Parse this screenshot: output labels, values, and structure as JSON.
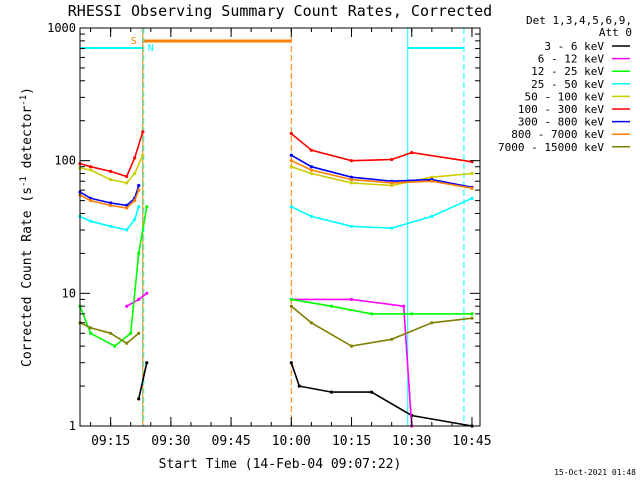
{
  "chart_data": {
    "type": "line",
    "title": "RHESSI Observing Summary Count Rates, Corrected",
    "xlabel": "Start Time (14-Feb-04 09:07:22)",
    "ylabel": "Corrected Count Rate (s",
    "ylabel_sup1": "-1",
    "ylabel_mid": " detector",
    "ylabel_sup2": "-1",
    "ylabel_end": ")",
    "y_scale": "log",
    "ylim": [
      1,
      1000
    ],
    "xlim": [
      "09:07:22",
      "10:47:00"
    ],
    "x_ticks": [
      "09:15",
      "09:30",
      "09:45",
      "10:00",
      "10:15",
      "10:30",
      "10:45"
    ],
    "y_ticks": [
      "1",
      "10",
      "100",
      "1000"
    ],
    "legend_title": [
      "Det 1,3,4,5,6,9,",
      "Att 0"
    ],
    "legend_position": "right",
    "timestamp": "15-Oct-2021 01:48",
    "flags": [
      {
        "label": "S",
        "color": "#ff7f00"
      },
      {
        "label": "N",
        "color": "#00ffff"
      }
    ],
    "series": [
      {
        "name": "3 - 6 keV",
        "color": "#000000",
        "x": [
          "09:07:22",
          "09:17",
          "09:22",
          "09:24",
          "10:00",
          "10:02",
          "10:10",
          "10:20",
          "10:30",
          "10:45"
        ],
        "values": [
          null,
          null,
          1.6,
          3.0,
          3.0,
          2.0,
          1.8,
          1.8,
          1.2,
          1.0
        ]
      },
      {
        "name": "6 - 12 keV",
        "color": "#ff00ff",
        "x": [
          "09:19",
          "09:22",
          "09:24",
          "10:00",
          "10:15",
          "10:28",
          "10:30"
        ],
        "values": [
          8,
          9,
          10,
          9,
          9,
          8,
          1.0
        ]
      },
      {
        "name": "12 - 25 keV",
        "color": "#00ff00",
        "x": [
          "09:07:22",
          "09:10",
          "09:16",
          "09:20",
          "09:22",
          "09:24",
          "10:00",
          "10:10",
          "10:20",
          "10:30",
          "10:45"
        ],
        "values": [
          8,
          5,
          4,
          5,
          20,
          45,
          9,
          8,
          7,
          7,
          7
        ]
      },
      {
        "name": "25 - 50 keV",
        "color": "#00ffff",
        "x": [
          "09:07:22",
          "09:10",
          "09:15",
          "09:19",
          "09:21",
          "09:22",
          "10:00",
          "10:05",
          "10:15",
          "10:25",
          "10:35",
          "10:45"
        ],
        "values": [
          38,
          35,
          32,
          30,
          36,
          45,
          45,
          38,
          32,
          31,
          38,
          52
        ]
      },
      {
        "name": "50 - 100 keV",
        "color": "#cccc00",
        "x": [
          "09:07:22",
          "09:10",
          "09:15",
          "09:19",
          "09:21",
          "09:23",
          "10:00",
          "10:05",
          "10:15",
          "10:25",
          "10:35",
          "10:45"
        ],
        "values": [
          88,
          85,
          72,
          68,
          80,
          110,
          90,
          80,
          68,
          65,
          75,
          80
        ]
      },
      {
        "name": "100 - 300 keV",
        "color": "#ff0000",
        "x": [
          "09:07:22",
          "09:10",
          "09:15",
          "09:19",
          "09:21",
          "09:23",
          "10:00",
          "10:05",
          "10:15",
          "10:25",
          "10:30",
          "10:45"
        ],
        "values": [
          95,
          90,
          83,
          76,
          105,
          165,
          160,
          120,
          100,
          102,
          115,
          98
        ]
      },
      {
        "name": "300 - 800 keV",
        "color": "#0000ff",
        "x": [
          "09:07:22",
          "09:10",
          "09:15",
          "09:19",
          "09:21",
          "09:22",
          "10:00",
          "10:05",
          "10:15",
          "10:25",
          "10:35",
          "10:45"
        ],
        "values": [
          58,
          52,
          48,
          46,
          52,
          65,
          110,
          90,
          75,
          70,
          72,
          63
        ]
      },
      {
        "name": "800 - 7000 keV",
        "color": "#ff7f00",
        "x": [
          "09:07:22",
          "09:10",
          "09:15",
          "09:19",
          "09:21",
          "09:22",
          "10:00",
          "10:05",
          "10:15",
          "10:25",
          "10:35",
          "10:45"
        ],
        "values": [
          55,
          50,
          46,
          44,
          50,
          60,
          100,
          85,
          72,
          68,
          70,
          62
        ]
      },
      {
        "name": "7000 - 15000 keV",
        "color": "#808000",
        "x": [
          "09:07:22",
          "09:10",
          "09:15",
          "09:19",
          "09:22",
          "10:00",
          "10:05",
          "10:15",
          "10:25",
          "10:35",
          "10:45"
        ],
        "values": [
          6,
          5.5,
          5,
          4.2,
          5,
          8,
          6,
          4,
          4.5,
          6,
          6.5
        ]
      }
    ]
  }
}
